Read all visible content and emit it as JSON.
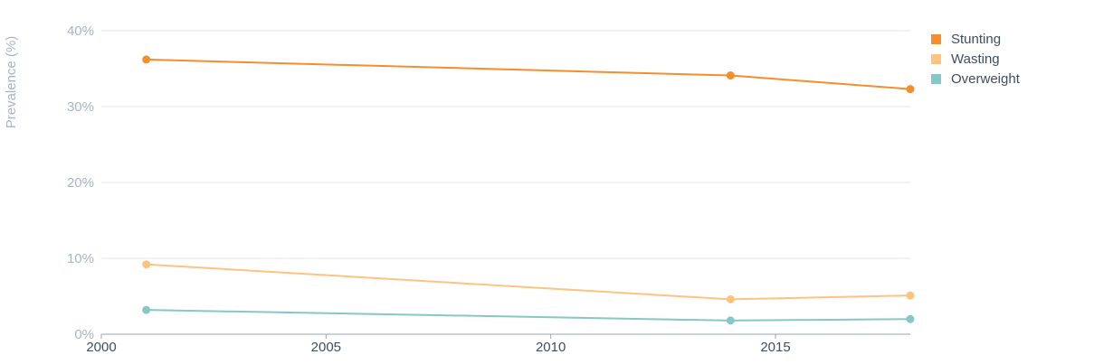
{
  "chart_data": {
    "type": "line",
    "ylabel": "Prevalence (%)",
    "xlim": [
      2000,
      2018
    ],
    "ylim": [
      0,
      40
    ],
    "x_ticks": [
      "2000",
      "2005",
      "2010",
      "2015"
    ],
    "y_ticks": [
      "0%",
      "10%",
      "20%",
      "30%",
      "40%"
    ],
    "grid": true,
    "legend_position": "top-right",
    "series": [
      {
        "name": "Stunting",
        "color": "#f58e2d",
        "x": [
          2001,
          2014,
          2018
        ],
        "y": [
          36.2,
          34.1,
          32.3
        ]
      },
      {
        "name": "Wasting",
        "color": "#fcc47e",
        "x": [
          2001,
          2014,
          2018
        ],
        "y": [
          9.2,
          4.6,
          5.1
        ]
      },
      {
        "name": "Overweight",
        "color": "#86c8c5",
        "x": [
          2001,
          2014,
          2018
        ],
        "y": [
          3.2,
          1.8,
          2.0
        ]
      }
    ]
  }
}
